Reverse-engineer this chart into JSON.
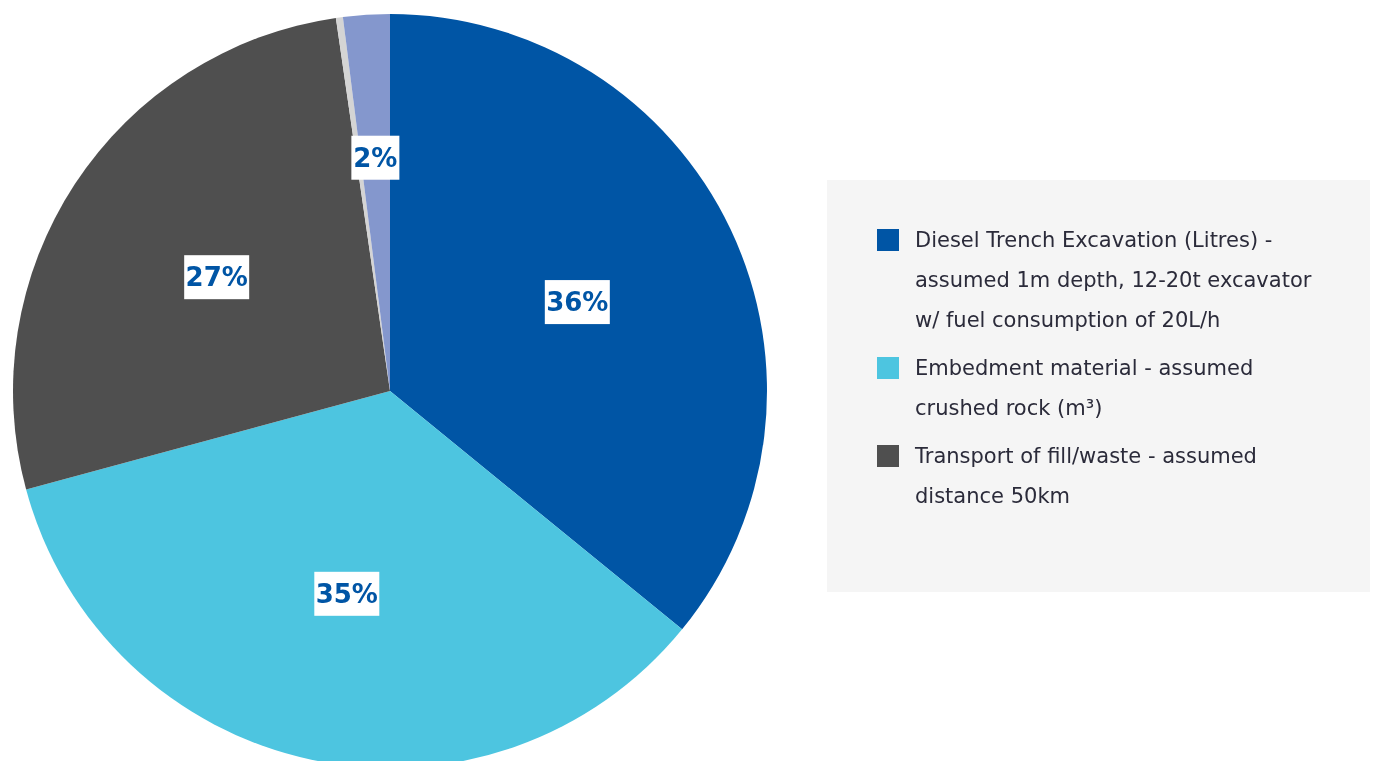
{
  "chart_data": {
    "type": "pie",
    "categories": [
      "Diesel Trench Excavation (Litres) - assumed 1m depth, 12-20t excavator w/ fuel consumption of 20L/h",
      "Embedment material - assumed crushed rock (m³)",
      "Transport of fill/waste - assumed distance 50km",
      null,
      null
    ],
    "values": [
      36,
      35,
      27,
      0.3,
      2
    ],
    "colors": [
      "#0055a5",
      "#4dc5e0",
      "#4f4f4f",
      "#d4d4d4",
      "#8497cd"
    ],
    "value_labels": [
      "36%",
      "35%",
      "27%",
      null,
      "2%"
    ],
    "legend": "right"
  }
}
